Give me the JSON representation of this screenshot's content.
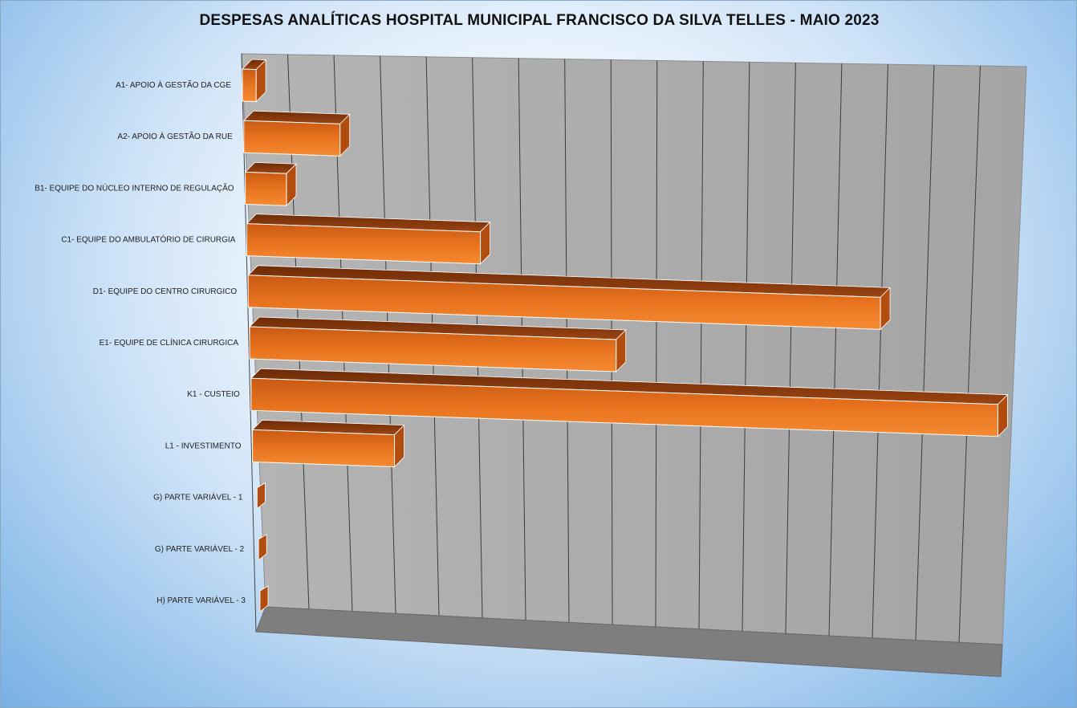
{
  "chart_data": {
    "type": "bar",
    "orientation": "horizontal",
    "title": "DESPESAS ANALÍTICAS HOSPITAL MUNICIPAL FRANCISCO DA SILVA TELLES - MAIO 2023",
    "xlabel": "",
    "ylabel": "",
    "categories": [
      "A1- APOIO À GESTÃO DA CGE",
      "A2- APOIO À GESTÃO DA RUE",
      "B1- EQUIPE DO NÚCLEO INTERNO DE REGULAÇÃO",
      "C1- EQUIPE DO AMBULATÓRIO DE CIRURGIA",
      "D1- EQUIPE DO CENTRO CIRURGICO",
      "E1- EQUIPE DE CLÍNICA CIRURGICA",
      "K1 - CUSTEIO",
      "L1 - INVESTIMENTO",
      "G) PARTE VARIÁVEL - 1",
      "G) PARTE VARIÁVEL - 2",
      "H) PARTE VARIÁVEL - 3"
    ],
    "values": [
      0.3,
      2.1,
      0.9,
      5.1,
      13.8,
      8.0,
      16.3,
      3.1,
      0,
      0,
      0
    ],
    "xlim": [
      0,
      16.5
    ],
    "grid": true,
    "legend": "none",
    "bar_color": "#e8731f",
    "wall_color": "#a9a9a9",
    "floor_color": "#7d7d7d"
  }
}
